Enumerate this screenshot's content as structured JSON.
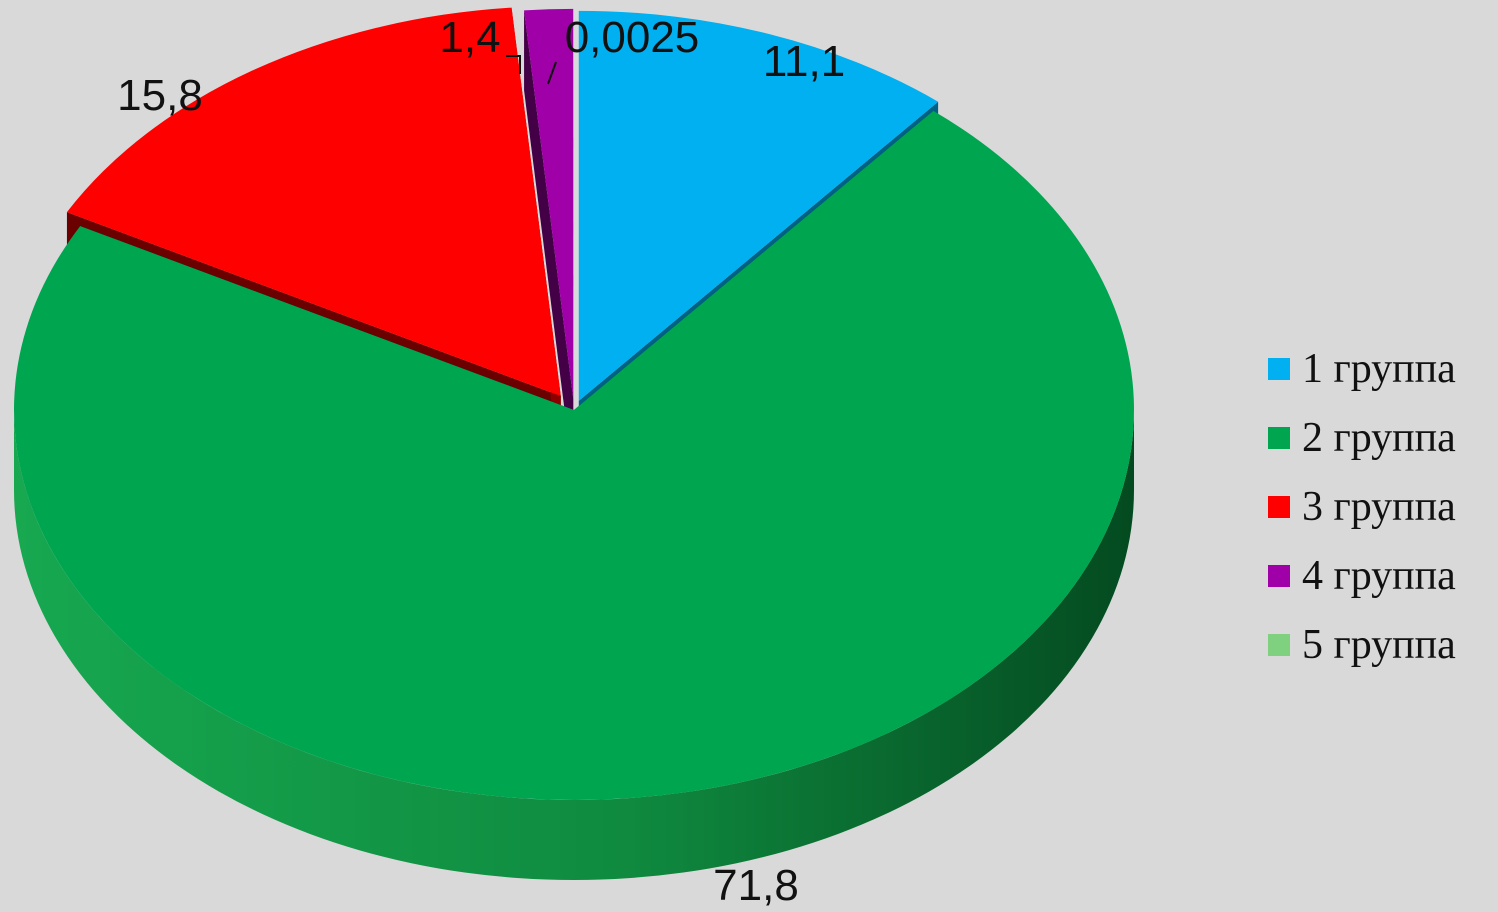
{
  "chart_data": {
    "type": "pie",
    "style": "3d-exploded",
    "categories": [
      "1 группа",
      "2 группа",
      "3 группа",
      "4 группа",
      "5 группа"
    ],
    "values": [
      11.1,
      71.8,
      15.8,
      1.4,
      0.0025
    ],
    "data_labels": [
      "11,1",
      "71,8",
      "15,8",
      "1,4",
      "0,0025"
    ],
    "colors": [
      "#00b0f0",
      "#00a550",
      "#ff0000",
      "#a000a8",
      "#7fd07f"
    ],
    "legend_position": "right",
    "title": ""
  }
}
